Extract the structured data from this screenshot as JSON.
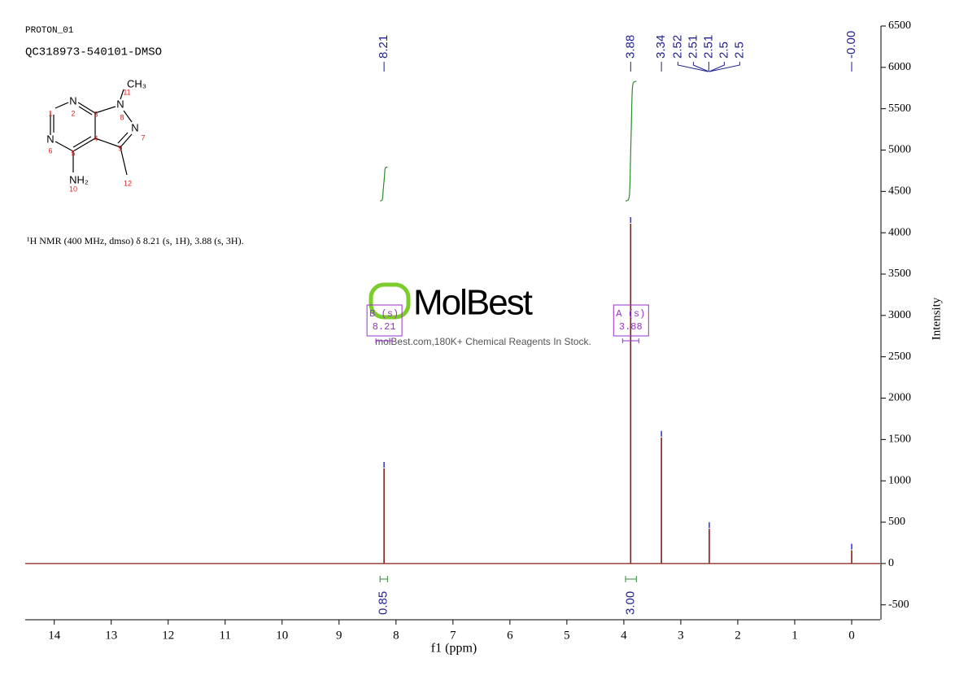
{
  "chart_data": {
    "type": "spectrum",
    "title": "PROTON_01",
    "subtitle": "QC318973-540101-DMSO",
    "annotation": "¹H NMR (400 MHz, dmso) δ 8.21 (s, 1H), 3.88 (s, 3H).",
    "xlabel": "f1 (ppm)",
    "ylabel": "Intensity",
    "xlim": [
      14.51,
      -0.5
    ],
    "ylim": [
      -680,
      6500
    ],
    "xticks": [
      14,
      13,
      12,
      11,
      10,
      9,
      8,
      7,
      6,
      5,
      4,
      3,
      2,
      1,
      0
    ],
    "yticks": [
      -500,
      0,
      500,
      1000,
      1500,
      2000,
      2500,
      3000,
      3500,
      4000,
      4500,
      5000,
      5500,
      6000,
      6500
    ],
    "series": [
      {
        "name": "spectrum",
        "color": "#8b1a1a",
        "x": [
          8.21,
          3.88,
          3.34,
          2.5,
          0
        ],
        "values": [
          1150,
          4110,
          1525,
          420,
          160
        ]
      }
    ],
    "peak_labels": [
      8.21,
      3.88,
      3.34,
      2.52,
      2.51,
      2.51,
      2.5,
      2.5,
      {
        "value": 0,
        "label": "-0.00"
      }
    ],
    "integrals": {
      "ranges": [
        [
          8.28,
          8.15
        ],
        [
          3.97,
          3.78
        ]
      ],
      "values": [
        0.85,
        3
      ],
      "value_labels": [
        "0.85",
        "3.00"
      ]
    },
    "multiplets": [
      {
        "label": "B (s)",
        "shift": 8.21
      },
      {
        "label": "A (s)",
        "shift": 3.88
      }
    ],
    "watermark": {
      "brand": "MolBest",
      "text": "molBest.com,180K+ Chemical Reagents In Stock."
    },
    "structure": {
      "atoms": [
        "N",
        "N",
        "N",
        "N",
        "CH₃",
        "NH₂"
      ],
      "numbers": [
        1,
        2,
        3,
        4,
        5,
        6,
        7,
        8,
        9,
        10,
        11,
        12
      ]
    }
  }
}
